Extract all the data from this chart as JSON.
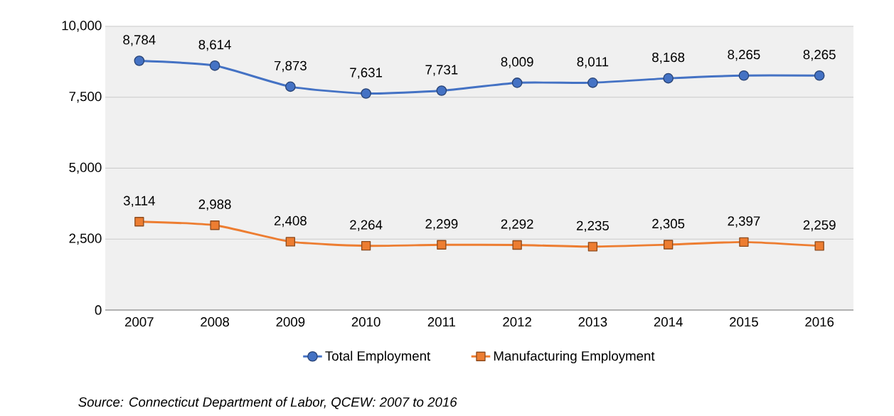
{
  "chart_data": {
    "type": "line",
    "categories": [
      "2007",
      "2008",
      "2009",
      "2010",
      "2011",
      "2012",
      "2013",
      "2014",
      "2015",
      "2016"
    ],
    "series": [
      {
        "name": "Total Employment",
        "color": "#4472c4",
        "marker": "circle",
        "values": [
          8784,
          8614,
          7873,
          7631,
          7731,
          8009,
          8011,
          8168,
          8265,
          8265
        ],
        "value_labels": [
          "8,784",
          "8,614",
          "7,873",
          "7,631",
          "7,731",
          "8,009",
          "8,011",
          "8,168",
          "8,265",
          "8,265"
        ]
      },
      {
        "name": "Manufacturing Employment",
        "color": "#ed7d31",
        "marker": "square",
        "values": [
          3114,
          2988,
          2408,
          2264,
          2299,
          2292,
          2235,
          2305,
          2397,
          2259
        ],
        "value_labels": [
          "3,114",
          "2,988",
          "2,408",
          "2,264",
          "2,299",
          "2,292",
          "2,235",
          "2,305",
          "2,397",
          "2,259"
        ]
      }
    ],
    "ylim": [
      0,
      10000
    ],
    "yticks": [
      {
        "value": 0,
        "label": "0"
      },
      {
        "value": 2500,
        "label": "2,500"
      },
      {
        "value": 5000,
        "label": "5,000"
      },
      {
        "value": 7500,
        "label": "7,500"
      },
      {
        "value": 10000,
        "label": "10,000"
      }
    ],
    "grid": "y",
    "legend": "bottom",
    "line_style": "solid",
    "annotations": [
      "Source: Connecticut Department of Labor, QCEW: 2007 to 2016"
    ]
  }
}
